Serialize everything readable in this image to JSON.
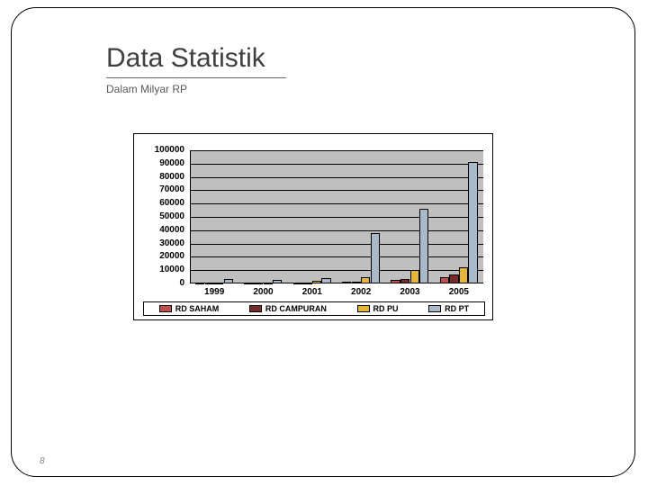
{
  "title": "Data Statistik",
  "subtitle": "Dalam Milyar RP",
  "page_number": "8",
  "chart": {
    "type": "bar",
    "background_color": "#ffffff",
    "plot_background": "#bfbfbf",
    "grid_color": "#000000",
    "font_family": "Arial",
    "title_fontsize": 30,
    "subtitle_fontsize": 12,
    "tick_fontsize": 10,
    "tick_fontweight": "bold",
    "ylim": [
      0,
      100000
    ],
    "ytick_step": 10000,
    "yticks": [
      0,
      10000,
      20000,
      30000,
      40000,
      50000,
      60000,
      70000,
      80000,
      90000,
      100000
    ],
    "categories": [
      "1999",
      "2000",
      "2001",
      "2002",
      "2003",
      "2005"
    ],
    "series": [
      {
        "label": "RD SAHAM",
        "color": "#c0504d",
        "values": [
          500,
          700,
          900,
          1200,
          2500,
          5000
        ]
      },
      {
        "label": "RD CAMPURAN",
        "color": "#772c2a",
        "values": [
          400,
          600,
          800,
          1500,
          3500,
          7000
        ]
      },
      {
        "label": "RD PU",
        "color": "#e5b53a",
        "values": [
          700,
          1000,
          2200,
          4500,
          10000,
          12000
        ]
      },
      {
        "label": "RD PT",
        "color": "#a9b9ca",
        "values": [
          3500,
          2800,
          4200,
          38000,
          56000,
          91000
        ]
      }
    ],
    "bar_group_width": 0.78,
    "bar_inner_width": 0.19
  }
}
